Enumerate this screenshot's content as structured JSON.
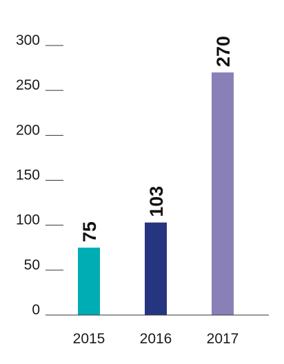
{
  "chart_data": {
    "type": "bar",
    "title": "",
    "xlabel": "",
    "ylabel": "",
    "categories": [
      "2015",
      "2016",
      "2017"
    ],
    "values": [
      75,
      103,
      270
    ],
    "data_labels": [
      "75",
      "103",
      "270"
    ],
    "colors": [
      "#00adb5",
      "#263580",
      "#8a80b8"
    ],
    "ylim": [
      0,
      300
    ],
    "y_ticks": [
      0,
      50,
      100,
      150,
      200,
      250,
      300
    ],
    "y_tick_labels": [
      "0",
      "50",
      "100",
      "150",
      "200",
      "250",
      "300"
    ],
    "grid": false,
    "legend": "none",
    "data_label_orientation": "vertical"
  }
}
